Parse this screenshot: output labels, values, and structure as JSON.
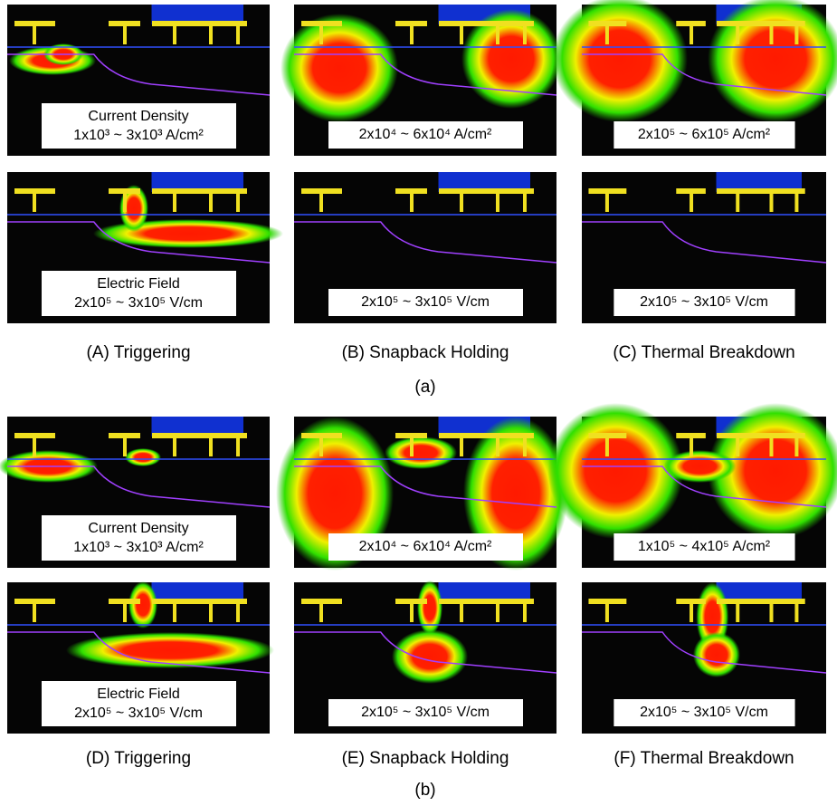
{
  "panels": [
    {
      "lines": [
        "Current Density",
        "1x10³ ~ 3x10³ A/cm²"
      ]
    },
    {
      "lines": [
        "2x10⁴ ~ 6x10⁴ A/cm²"
      ]
    },
    {
      "lines": [
        "2x10⁵ ~ 6x10⁵ A/cm²"
      ]
    },
    {
      "lines": [
        "Electric Field",
        "2x10⁵ ~ 3x10⁵ V/cm"
      ]
    },
    {
      "lines": [
        "2x10⁵ ~ 3x10⁵ V/cm"
      ]
    },
    {
      "lines": [
        "2x10⁵ ~ 3x10⁵ V/cm"
      ]
    },
    {
      "lines": [
        "Current Density",
        "1x10³ ~ 3x10³ A/cm²"
      ]
    },
    {
      "lines": [
        "2x10⁴ ~ 6x10⁴ A/cm²"
      ]
    },
    {
      "lines": [
        "1x10⁵ ~ 4x10⁵ A/cm²"
      ]
    },
    {
      "lines": [
        "Electric Field",
        "2x10⁵ ~ 3x10⁵ V/cm"
      ]
    },
    {
      "lines": [
        "2x10⁵ ~ 3x10⁵ V/cm"
      ]
    },
    {
      "lines": [
        "2x10⁵ ~ 3x10⁵ V/cm"
      ]
    }
  ],
  "captions": [
    "(A) Triggering",
    "(B)  Snapback Holding",
    "(C) Thermal Breakdown",
    "(D) Triggering",
    "(E) Snapback Holding",
    "(F) Thermal Breakdown"
  ],
  "section_labels": [
    "(a)",
    "(b)"
  ]
}
